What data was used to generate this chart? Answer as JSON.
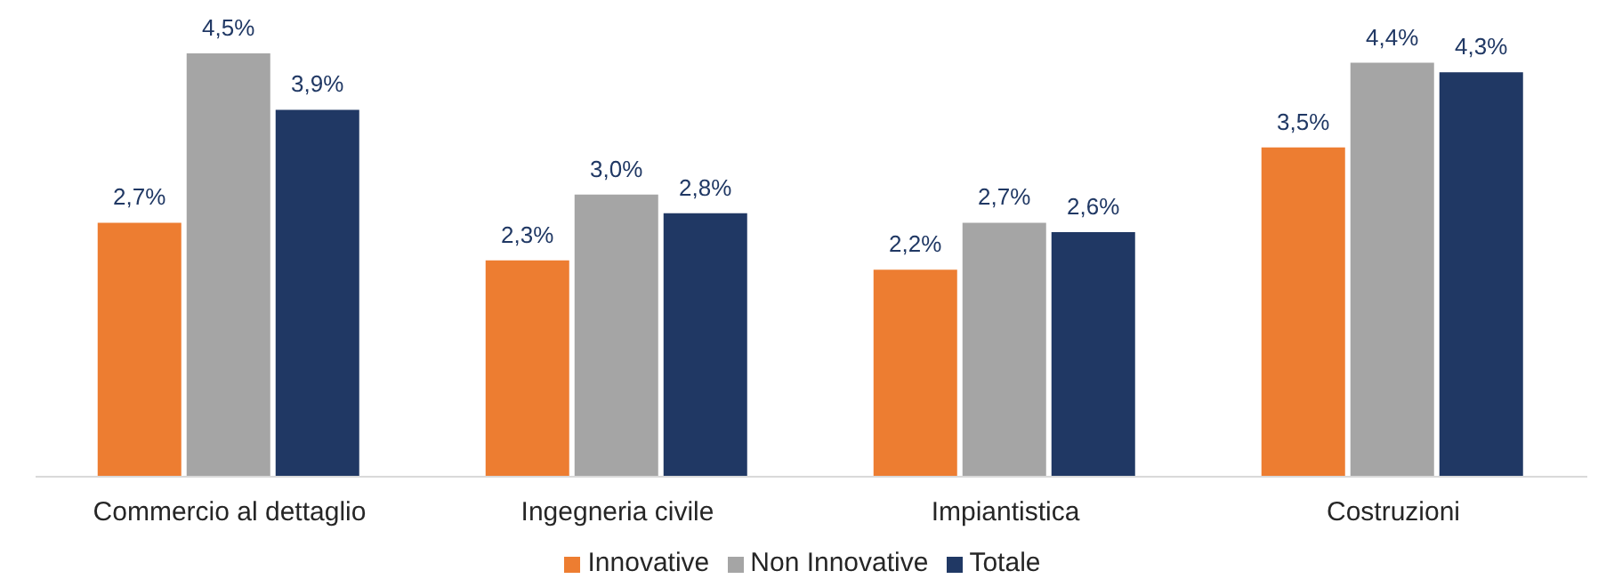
{
  "chart_data": {
    "type": "bar",
    "categories": [
      "Commercio al dettaglio",
      "Ingegneria civile",
      "Impiantistica",
      "Costruzioni"
    ],
    "series": [
      {
        "name": "Innovative",
        "color": "#ed7d31",
        "values": [
          2.7,
          2.3,
          2.2,
          3.5
        ],
        "value_labels": [
          "2,7%",
          "2,3%",
          "2,2%",
          "3,5%"
        ]
      },
      {
        "name": "Non Innovative",
        "color": "#a5a5a5",
        "values": [
          4.5,
          3.0,
          2.7,
          4.4
        ],
        "value_labels": [
          "4,5%",
          "3,0%",
          "2,7%",
          "4,4%"
        ]
      },
      {
        "name": "Totale",
        "color": "#203864",
        "values": [
          3.9,
          2.8,
          2.6,
          4.3
        ],
        "value_labels": [
          "3,9%",
          "2,8%",
          "2,6%",
          "4,3%"
        ]
      }
    ],
    "legend": "bottom",
    "grid": false
  }
}
